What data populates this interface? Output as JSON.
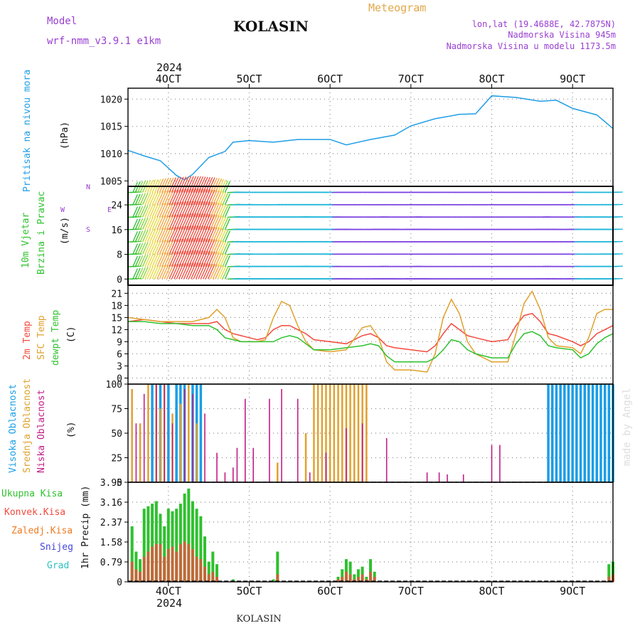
{
  "header": {
    "model_label": "Model",
    "model_name": "wrf-nmm_v3.9.1 e1km",
    "station": "KOLASIN",
    "product": "Meteogram",
    "coords": "lon,lat (19.4688E, 42.7875N)",
    "elevation": "Nadmorska Visina 945m",
    "model_elevation": "Nadmorska Visina u modelu 1173.5m",
    "footer_station": "KOLASIN",
    "watermark": "made by Angel"
  },
  "colors": {
    "pressure": "#1f9ee6",
    "temp2m": "#f24a3d",
    "sfc": "#e0a12e",
    "dewpt": "#2ec12e",
    "high_cloud": "#1a9ee6",
    "mid_cloud": "#e0a12e",
    "low_cloud": "#c21d85",
    "total_precip": "#2ec12e",
    "conv_precip": "#f24a3d",
    "frz_precip": "#f07b22",
    "snow": "#4545e0",
    "graupel": "#2ec1c1",
    "title": "#111111",
    "purple": "#9a3fd1",
    "gold": "#e2a84a"
  },
  "chart_data": [
    {
      "type": "line",
      "panel": "pressure",
      "ylabel": [
        "Pritisak na nivou mora",
        "(hPa)"
      ],
      "ylim": [
        1004,
        1022
      ],
      "yticks": [
        1005,
        1010,
        1015,
        1020
      ],
      "x_unit": "day of October 2024",
      "x": [
        3.5,
        3.7,
        3.9,
        4.1,
        4.2,
        4.3,
        4.5,
        4.7,
        4.8,
        5.0,
        5.3,
        5.6,
        6.0,
        6.2,
        6.5,
        6.8,
        7.0,
        7.3,
        7.6,
        7.8,
        8.0,
        8.3,
        8.6,
        8.8,
        9.0,
        9.3,
        9.5
      ],
      "values": [
        1010.6,
        1009.6,
        1008.7,
        1006.0,
        1005.2,
        1006.2,
        1009.3,
        1010.4,
        1012.1,
        1012.4,
        1012.1,
        1012.6,
        1012.6,
        1011.6,
        1012.6,
        1013.4,
        1015.1,
        1016.4,
        1017.2,
        1017.3,
        1020.6,
        1020.3,
        1019.6,
        1019.8,
        1018.3,
        1017.1,
        1014.6
      ],
      "grid": true
    },
    {
      "type": "barbs",
      "panel": "wind",
      "ylabel": [
        "10m Vjetar",
        "Brzina i Pravac",
        "(m/s)"
      ],
      "compass_labels": [
        "N",
        "W",
        "E",
        "S"
      ],
      "ylim": [
        -2,
        30
      ],
      "yticks": [
        0,
        8,
        16,
        24
      ],
      "x": [
        3.5,
        3.6,
        3.7,
        3.8,
        3.9,
        4.0,
        4.1,
        4.2,
        4.3,
        4.4,
        4.5,
        4.6,
        4.7,
        4.8,
        5.0,
        5.2,
        5.4,
        5.6,
        5.8,
        6.0,
        6.2,
        6.4,
        6.6,
        6.8,
        7.0,
        7.2,
        7.4,
        7.6,
        7.8,
        8.0,
        8.2,
        8.4,
        8.6,
        8.8,
        9.0,
        9.2,
        9.4,
        9.5
      ],
      "speed": [
        5,
        7,
        9,
        10,
        12,
        13,
        14,
        15,
        15,
        14,
        13,
        11,
        7,
        3,
        2,
        2,
        3,
        4,
        3,
        2,
        1,
        1,
        2,
        1,
        2,
        1,
        1,
        1,
        1,
        1,
        1,
        1,
        2,
        1,
        2,
        2,
        3,
        4
      ],
      "grid": true
    },
    {
      "type": "line",
      "panel": "temperature",
      "ylabel": [
        "2m Temp",
        "SFC Temp",
        "dewpt Temp",
        "(C)"
      ],
      "ylim": [
        -1.5,
        23
      ],
      "yticks": [
        0,
        3,
        6,
        9,
        12,
        15,
        18,
        21
      ],
      "x": [
        3.5,
        3.7,
        3.9,
        4.1,
        4.3,
        4.5,
        4.6,
        4.7,
        4.8,
        4.9,
        5.0,
        5.1,
        5.2,
        5.3,
        5.4,
        5.5,
        5.6,
        5.7,
        5.8,
        6.0,
        6.2,
        6.4,
        6.5,
        6.6,
        6.7,
        6.8,
        7.0,
        7.2,
        7.3,
        7.4,
        7.5,
        7.6,
        7.7,
        7.8,
        8.0,
        8.2,
        8.3,
        8.4,
        8.5,
        8.6,
        8.7,
        8.8,
        9.0,
        9.1,
        9.2,
        9.3,
        9.4,
        9.5
      ],
      "series": [
        {
          "name": "2m Temp",
          "values": [
            14,
            14.5,
            14,
            13.5,
            13.5,
            13.5,
            14,
            12,
            11,
            10.5,
            10,
            9.5,
            10,
            12,
            13,
            13,
            12,
            11,
            9.5,
            9,
            8.5,
            10.5,
            11,
            10,
            8,
            7.5,
            7,
            6.5,
            8,
            11,
            13.5,
            12,
            10.5,
            10,
            9,
            9.5,
            13,
            15.5,
            16,
            14,
            11,
            10.5,
            9,
            8,
            9,
            11,
            12,
            13
          ]
        },
        {
          "name": "SFC Temp",
          "values": [
            15,
            14.5,
            14,
            14,
            14,
            15,
            17,
            15,
            10,
            9,
            9,
            9,
            9.5,
            15,
            19,
            18,
            13,
            9,
            7,
            6.5,
            7,
            12.5,
            13,
            10,
            4,
            2,
            2,
            1.5,
            6,
            15,
            19.5,
            16,
            9,
            6,
            4,
            4,
            11,
            18.5,
            21.5,
            17,
            10,
            8,
            7.5,
            6,
            10,
            16,
            17,
            17
          ]
        },
        {
          "name": "dewpt Temp",
          "values": [
            14,
            14,
            13.5,
            13.5,
            13,
            13,
            12,
            10,
            9.5,
            9,
            9,
            9,
            9,
            9,
            10,
            10.5,
            10,
            8.5,
            7,
            7,
            7.5,
            8,
            8.5,
            8,
            5.5,
            4,
            4,
            4,
            5,
            7,
            9.5,
            9,
            7,
            6,
            5,
            5,
            8.5,
            11,
            11.5,
            10.5,
            8,
            7.5,
            7,
            5,
            6,
            8.5,
            10,
            11
          ]
        }
      ],
      "grid": true
    },
    {
      "type": "bar",
      "panel": "clouds",
      "ylabel": [
        "Visoka Oblacnost",
        "Srednja Oblacnost",
        "Niska Oblacnost",
        "(%)"
      ],
      "ylim": [
        0,
        100
      ],
      "yticks": [
        0,
        25,
        50,
        75,
        100
      ],
      "series": [
        {
          "name": "Visoka Oblacnost",
          "x": [
            3.8,
            3.9,
            4.0,
            4.1,
            4.15,
            4.2,
            4.3,
            4.35,
            4.4,
            8.7,
            8.75,
            8.8,
            8.85,
            8.9,
            8.95,
            9.0,
            9.05,
            9.1,
            9.15,
            9.2,
            9.25,
            9.3,
            9.35,
            9.4,
            9.45,
            9.5
          ],
          "values": [
            100,
            100,
            100,
            100,
            100,
            100,
            100,
            100,
            100,
            100,
            100,
            100,
            100,
            100,
            100,
            100,
            100,
            100,
            100,
            100,
            100,
            100,
            100,
            100,
            100,
            100
          ]
        },
        {
          "name": "Srednja Oblacnost",
          "x": [
            3.55,
            3.65,
            3.75,
            3.85,
            3.9,
            3.95,
            4.05,
            4.15,
            4.25,
            4.35,
            5.35,
            5.7,
            5.8,
            5.85,
            5.9,
            5.95,
            6.0,
            6.05,
            6.1,
            6.15,
            6.2,
            6.25,
            6.3,
            6.35,
            6.4,
            6.45
          ],
          "values": [
            95,
            60,
            100,
            100,
            75,
            100,
            70,
            80,
            100,
            60,
            20,
            50,
            100,
            100,
            100,
            100,
            100,
            100,
            100,
            100,
            100,
            100,
            100,
            100,
            100,
            100
          ]
        },
        {
          "name": "Niska Oblacnost",
          "x": [
            3.6,
            3.7,
            3.85,
            3.95,
            4.05,
            4.2,
            4.3,
            4.45,
            4.6,
            4.7,
            4.8,
            4.85,
            4.95,
            5.05,
            5.25,
            5.4,
            5.6,
            5.75,
            5.95,
            6.2,
            6.4,
            6.7,
            7.2,
            7.35,
            7.45,
            7.65,
            8.0,
            8.1
          ],
          "values": [
            60,
            90,
            100,
            100,
            60,
            95,
            90,
            70,
            30,
            10,
            15,
            35,
            85,
            35,
            85,
            95,
            85,
            10,
            30,
            55,
            60,
            45,
            10,
            10,
            8,
            8,
            38,
            38
          ]
        }
      ],
      "grid": true
    },
    {
      "type": "bar",
      "panel": "precipitation",
      "ylabel": [
        "1hr Precip (mm)"
      ],
      "legend": [
        "Ukupna Kisa",
        "Konvek.Kisa",
        "Zaledj.Kisa",
        "Snijeg",
        "Grad"
      ],
      "ylim": [
        0,
        3.95
      ],
      "yticks": [
        0,
        0.79,
        1.58,
        2.37,
        3.16,
        3.95
      ],
      "categories_x": [
        3.55,
        3.6,
        3.65,
        3.7,
        3.75,
        3.8,
        3.85,
        3.9,
        3.95,
        4.0,
        4.05,
        4.1,
        4.15,
        4.2,
        4.25,
        4.3,
        4.35,
        4.4,
        4.45,
        4.5,
        4.55,
        4.6,
        4.8,
        5.3,
        5.35,
        6.1,
        6.15,
        6.2,
        6.25,
        6.3,
        6.35,
        6.4,
        6.45,
        6.5,
        6.55,
        9.45,
        9.5
      ],
      "series": [
        {
          "name": "Ukupna Kisa",
          "values": [
            2.2,
            1.2,
            0.9,
            2.9,
            3.0,
            3.1,
            3.2,
            2.7,
            2.2,
            2.9,
            2.8,
            2.9,
            3.1,
            3.5,
            3.7,
            3.2,
            2.9,
            2.6,
            1.8,
            0.8,
            1.2,
            0.7,
            0.1,
            0.1,
            1.2,
            0.2,
            0.5,
            0.9,
            0.8,
            0.3,
            0.5,
            0.6,
            0.2,
            0.9,
            0.4,
            0.7,
            0.8
          ]
        },
        {
          "name": "Konvek.Kisa",
          "values": [
            0.8,
            0.5,
            0.4,
            1.0,
            1.2,
            1.4,
            1.5,
            1.5,
            1.0,
            1.3,
            1.4,
            1.2,
            1.5,
            1.6,
            1.5,
            1.3,
            1.0,
            0.9,
            0.6,
            0.3,
            0.4,
            0.2,
            0.0,
            0.0,
            0.3,
            0.1,
            0.2,
            0.4,
            0.3,
            0.1,
            0.2,
            0.3,
            0.1,
            0.4,
            0.2,
            0.2,
            0.3
          ]
        }
      ],
      "grid": true
    }
  ],
  "xaxis": {
    "top_year": "2024",
    "bottom_year": "2024",
    "ticks": [
      {
        "day": 4,
        "label": "4OCT"
      },
      {
        "day": 5,
        "label": "5OCT"
      },
      {
        "day": 6,
        "label": "6OCT"
      },
      {
        "day": 7,
        "label": "7OCT"
      },
      {
        "day": 8,
        "label": "8OCT"
      },
      {
        "day": 9,
        "label": "9OCT"
      }
    ],
    "range": [
      3.5,
      9.5
    ]
  }
}
